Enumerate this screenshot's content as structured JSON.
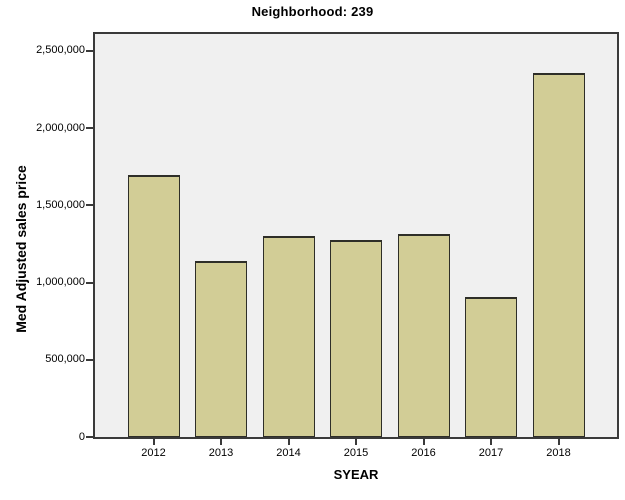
{
  "chart_data": {
    "type": "bar",
    "title": "Neighborhood: 239",
    "xlabel": "SYEAR",
    "ylabel": "Med Adjusted sales price",
    "categories": [
      "2012",
      "2013",
      "2014",
      "2015",
      "2016",
      "2017",
      "2018"
    ],
    "values": [
      1700000,
      1140000,
      1300000,
      1275000,
      1315000,
      905000,
      2360000
    ],
    "ylim": [
      0,
      2610000
    ],
    "yticks": [
      {
        "value": 0,
        "label": "0"
      },
      {
        "value": 500000,
        "label": "500,000"
      },
      {
        "value": 1000000,
        "label": "1,000,000"
      },
      {
        "value": 1500000,
        "label": "1,500,000"
      },
      {
        "value": 2000000,
        "label": "2,000,000"
      },
      {
        "value": 2500000,
        "label": "2,500,000"
      }
    ],
    "grid": false,
    "legend_position": "none",
    "colors": {
      "bar_fill": "#d2cd96",
      "bar_border": "#2e2e28",
      "plot_background": "#f0f0f0",
      "frame": "#3a3a3a",
      "text": "#000000",
      "page_background": "#ffffff"
    }
  }
}
